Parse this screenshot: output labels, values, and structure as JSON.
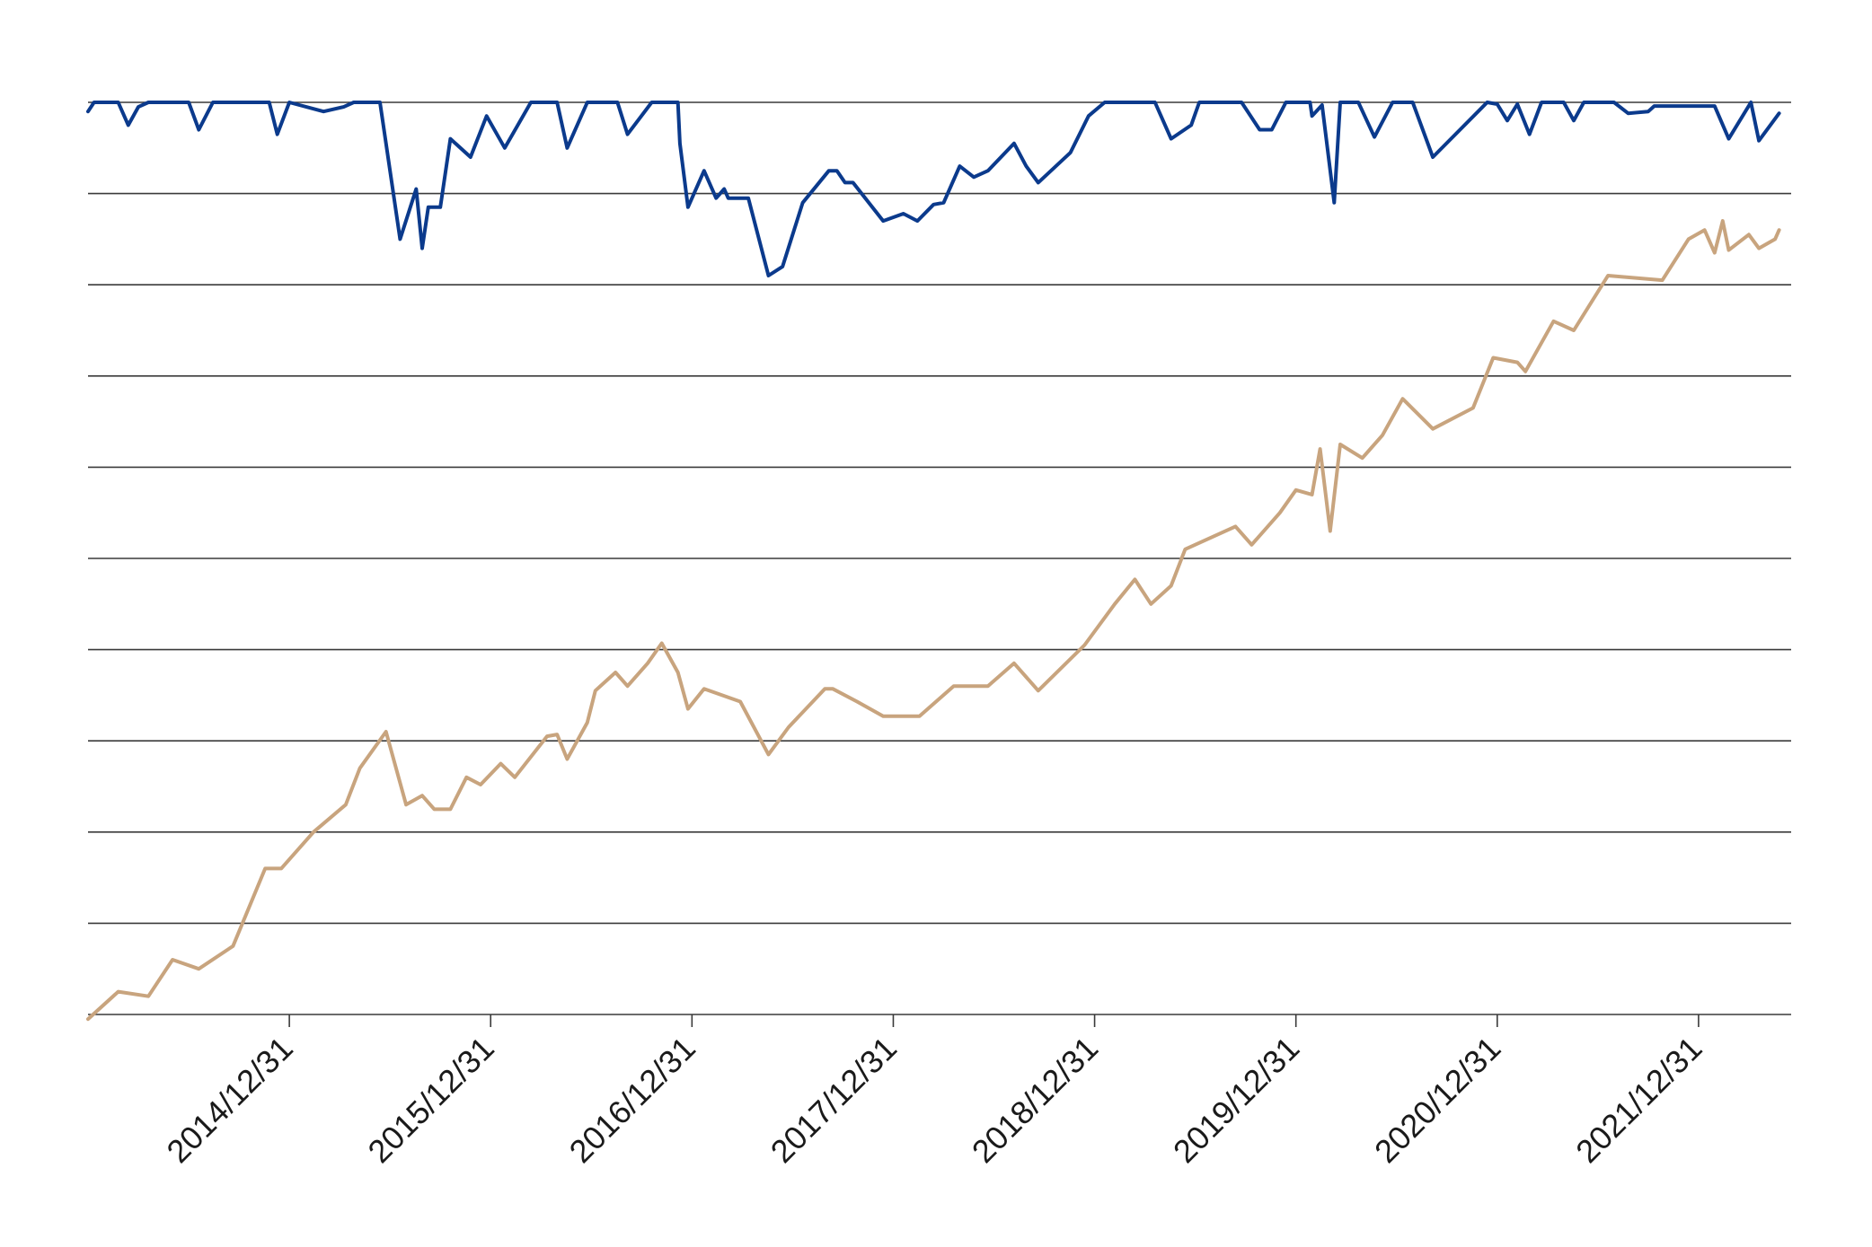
{
  "chart_data": {
    "type": "line",
    "title": "",
    "xlabel": "",
    "ylabel": "",
    "grid": true,
    "legend": "none",
    "x_tick_labels": [
      "2014/12/31",
      "2015/12/31",
      "2016/12/31",
      "2017/12/31",
      "2018/12/31",
      "2019/12/31",
      "2020/12/31",
      "2021/12/31"
    ],
    "xlim": [
      2014.0,
      2022.46
    ],
    "ylim": [
      0,
      10
    ],
    "y_gridlines": [
      1,
      2,
      3,
      4,
      5,
      6,
      7,
      8,
      9,
      10
    ],
    "series": [
      {
        "color": "#0b3a8c",
        "points": [
          [
            2014.0,
            9.9
          ],
          [
            2014.03,
            10.0
          ],
          [
            2014.15,
            10.0
          ],
          [
            2014.2,
            9.75
          ],
          [
            2014.25,
            9.95
          ],
          [
            2014.3,
            10.0
          ],
          [
            2014.5,
            10.0
          ],
          [
            2014.55,
            9.7
          ],
          [
            2014.62,
            10.0
          ],
          [
            2014.9,
            10.0
          ],
          [
            2014.94,
            9.65
          ],
          [
            2015.0,
            10.0
          ],
          [
            2015.17,
            9.9
          ],
          [
            2015.27,
            9.95
          ],
          [
            2015.32,
            10.0
          ],
          [
            2015.45,
            10.0
          ],
          [
            2015.55,
            8.5
          ],
          [
            2015.63,
            9.05
          ],
          [
            2015.66,
            8.4
          ],
          [
            2015.69,
            8.85
          ],
          [
            2015.75,
            8.85
          ],
          [
            2015.8,
            9.6
          ],
          [
            2015.9,
            9.4
          ],
          [
            2015.98,
            9.85
          ],
          [
            2016.07,
            9.5
          ],
          [
            2016.2,
            10.0
          ],
          [
            2016.33,
            10.0
          ],
          [
            2016.38,
            9.5
          ],
          [
            2016.48,
            10.0
          ],
          [
            2016.63,
            10.0
          ],
          [
            2016.68,
            9.65
          ],
          [
            2016.8,
            10.0
          ],
          [
            2016.93,
            10.0
          ],
          [
            2016.94,
            9.55
          ],
          [
            2016.98,
            8.85
          ],
          [
            2017.06,
            9.25
          ],
          [
            2017.12,
            8.95
          ],
          [
            2017.16,
            9.05
          ],
          [
            2017.18,
            8.95
          ],
          [
            2017.28,
            8.95
          ],
          [
            2017.38,
            8.1
          ],
          [
            2017.45,
            8.2
          ],
          [
            2017.55,
            8.9
          ],
          [
            2017.68,
            9.25
          ],
          [
            2017.72,
            9.25
          ],
          [
            2017.76,
            9.12
          ],
          [
            2017.8,
            9.12
          ],
          [
            2017.95,
            8.7
          ],
          [
            2018.05,
            8.78
          ],
          [
            2018.12,
            8.7
          ],
          [
            2018.2,
            8.88
          ],
          [
            2018.25,
            8.9
          ],
          [
            2018.33,
            9.3
          ],
          [
            2018.4,
            9.18
          ],
          [
            2018.47,
            9.25
          ],
          [
            2018.6,
            9.55
          ],
          [
            2018.66,
            9.3
          ],
          [
            2018.72,
            9.12
          ],
          [
            2018.88,
            9.45
          ],
          [
            2018.97,
            9.85
          ],
          [
            2019.05,
            10.0
          ],
          [
            2019.3,
            10.0
          ],
          [
            2019.38,
            9.6
          ],
          [
            2019.48,
            9.75
          ],
          [
            2019.52,
            10.0
          ],
          [
            2019.73,
            10.0
          ],
          [
            2019.82,
            9.7
          ],
          [
            2019.88,
            9.7
          ],
          [
            2019.95,
            10.0
          ],
          [
            2020.07,
            10.0
          ],
          [
            2020.08,
            9.85
          ],
          [
            2020.13,
            9.97
          ],
          [
            2020.19,
            8.9
          ],
          [
            2020.22,
            10.0
          ],
          [
            2020.31,
            10.0
          ],
          [
            2020.39,
            9.62
          ],
          [
            2020.48,
            10.0
          ],
          [
            2020.58,
            10.0
          ],
          [
            2020.68,
            9.4
          ],
          [
            2020.95,
            10.0
          ],
          [
            2021.0,
            9.98
          ],
          [
            2021.05,
            9.8
          ],
          [
            2021.1,
            9.98
          ],
          [
            2021.16,
            9.65
          ],
          [
            2021.22,
            10.0
          ],
          [
            2021.33,
            10.0
          ],
          [
            2021.38,
            9.8
          ],
          [
            2021.43,
            10.0
          ],
          [
            2021.58,
            10.0
          ],
          [
            2021.65,
            9.88
          ],
          [
            2021.75,
            9.9
          ],
          [
            2021.78,
            9.96
          ],
          [
            2021.86,
            9.96
          ],
          [
            2021.96,
            9.96
          ],
          [
            2022.08,
            9.96
          ],
          [
            2022.15,
            9.6
          ],
          [
            2022.26,
            10.0
          ],
          [
            2022.3,
            9.58
          ],
          [
            2022.4,
            9.88
          ]
        ]
      },
      {
        "color": "#c8a47e",
        "points": [
          [
            2014.0,
            -0.05
          ],
          [
            2014.15,
            0.25
          ],
          [
            2014.3,
            0.2
          ],
          [
            2014.42,
            0.6
          ],
          [
            2014.55,
            0.5
          ],
          [
            2014.72,
            0.75
          ],
          [
            2014.88,
            1.6
          ],
          [
            2014.96,
            1.6
          ],
          [
            2015.12,
            2.0
          ],
          [
            2015.28,
            2.3
          ],
          [
            2015.35,
            2.7
          ],
          [
            2015.48,
            3.1
          ],
          [
            2015.58,
            2.3
          ],
          [
            2015.66,
            2.4
          ],
          [
            2015.72,
            2.25
          ],
          [
            2015.8,
            2.25
          ],
          [
            2015.88,
            2.6
          ],
          [
            2015.95,
            2.52
          ],
          [
            2016.05,
            2.75
          ],
          [
            2016.12,
            2.6
          ],
          [
            2016.28,
            3.05
          ],
          [
            2016.33,
            3.07
          ],
          [
            2016.38,
            2.8
          ],
          [
            2016.48,
            3.2
          ],
          [
            2016.52,
            3.55
          ],
          [
            2016.62,
            3.75
          ],
          [
            2016.68,
            3.6
          ],
          [
            2016.78,
            3.85
          ],
          [
            2016.85,
            4.07
          ],
          [
            2016.93,
            3.75
          ],
          [
            2016.98,
            3.35
          ],
          [
            2017.06,
            3.57
          ],
          [
            2017.24,
            3.43
          ],
          [
            2017.38,
            2.85
          ],
          [
            2017.48,
            3.15
          ],
          [
            2017.66,
            3.57
          ],
          [
            2017.7,
            3.57
          ],
          [
            2017.82,
            3.43
          ],
          [
            2017.95,
            3.27
          ],
          [
            2018.08,
            3.27
          ],
          [
            2018.13,
            3.27
          ],
          [
            2018.3,
            3.6
          ],
          [
            2018.47,
            3.6
          ],
          [
            2018.6,
            3.85
          ],
          [
            2018.72,
            3.55
          ],
          [
            2018.95,
            4.05
          ],
          [
            2019.1,
            4.5
          ],
          [
            2019.2,
            4.77
          ],
          [
            2019.28,
            4.5
          ],
          [
            2019.38,
            4.7
          ],
          [
            2019.45,
            5.1
          ],
          [
            2019.7,
            5.35
          ],
          [
            2019.78,
            5.15
          ],
          [
            2019.92,
            5.5
          ],
          [
            2020.0,
            5.75
          ],
          [
            2020.08,
            5.7
          ],
          [
            2020.12,
            6.2
          ],
          [
            2020.17,
            5.3
          ],
          [
            2020.22,
            6.25
          ],
          [
            2020.33,
            6.1
          ],
          [
            2020.43,
            6.35
          ],
          [
            2020.53,
            6.75
          ],
          [
            2020.68,
            6.42
          ],
          [
            2020.88,
            6.65
          ],
          [
            2020.98,
            7.2
          ],
          [
            2021.1,
            7.15
          ],
          [
            2021.14,
            7.05
          ],
          [
            2021.28,
            7.6
          ],
          [
            2021.38,
            7.5
          ],
          [
            2021.55,
            8.1
          ],
          [
            2021.82,
            8.05
          ],
          [
            2021.95,
            8.5
          ],
          [
            2022.03,
            8.6
          ],
          [
            2022.08,
            8.35
          ],
          [
            2022.12,
            8.7
          ],
          [
            2022.15,
            8.38
          ],
          [
            2022.25,
            8.55
          ],
          [
            2022.3,
            8.4
          ],
          [
            2022.38,
            8.5
          ],
          [
            2022.4,
            8.6
          ]
        ]
      }
    ]
  }
}
